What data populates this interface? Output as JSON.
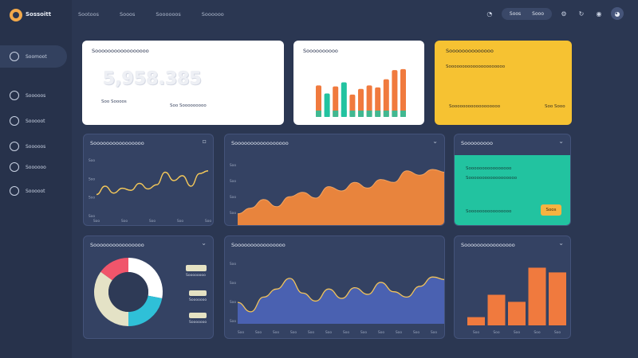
{
  "app": {
    "brand": "Sossoitt"
  },
  "sidebar": {
    "items": [
      {
        "label": "Soomoot",
        "icon": "dashboard-icon",
        "active": true
      },
      {
        "label": "Sooooos",
        "icon": "people-icon",
        "active": false
      },
      {
        "label": "Sooooot",
        "icon": "chart-icon",
        "active": false
      },
      {
        "label": "Sooooos",
        "icon": "refresh-icon",
        "active": false
      },
      {
        "label": "Soooooo",
        "icon": "settings-icon",
        "active": false
      },
      {
        "label": "Sooooot",
        "icon": "help-icon",
        "active": false
      }
    ]
  },
  "topnav": {
    "items": [
      "Sootoos",
      "Sooos",
      "Soooooos",
      "Soooooo"
    ]
  },
  "topright": {
    "pill": [
      "Soos",
      "Sooo"
    ]
  },
  "cards": {
    "total": {
      "title": "Sooooooooooooooooo",
      "value": "5,958.385",
      "left_label": "Soo Soooos",
      "right_label": "Soo Sooooooooo",
      "color": "#ffffff"
    },
    "bars_mini": {
      "title": "Soooooooooo",
      "color": "#ffffff"
    },
    "yellow": {
      "title": "Soooooooooooooo",
      "subtitle": "Sooooooooooooooooooooo",
      "footer_left": "Soooooooooooooooooo",
      "footer_right": "Soo Sooo",
      "color": "#f6c232"
    },
    "line_left": {
      "title": "Soooooooooooooooo"
    },
    "area": {
      "title": "Sooooooooooooooooo"
    },
    "teal": {
      "title": "Sooooooooo",
      "line1": "Soooooooooooooooo",
      "line2": "Soooooooooooooooooo",
      "line3": "Soooooooooooooooo",
      "button": "Soos",
      "color": "#22c3a0"
    },
    "donut": {
      "title": "Soooooooooooooooo",
      "legend": [
        "Soooooooo",
        "Sooooooo",
        "Sooooooo"
      ]
    },
    "line_blue": {
      "title": "Soooooooooooooooo"
    },
    "bar_right": {
      "title": "Soooooooooooooooo"
    }
  },
  "chart_data": [
    {
      "type": "bar",
      "name": "mini-bars",
      "values": [
        62,
        46,
        60,
        68,
        44,
        55,
        62,
        58,
        74,
        92,
        94
      ],
      "colors": [
        "#f07a3e",
        "#22c3a0",
        "#f07a3e",
        "#22c3a0",
        "#f07a3e",
        "#f07a3e",
        "#f07a3e",
        "#f07a3e",
        "#f07a3e",
        "#f07a3e",
        "#f07a3e"
      ],
      "ylim": [
        0,
        100
      ]
    },
    {
      "type": "line",
      "name": "left-line",
      "xticks": [
        "Soo",
        "Soo",
        "Soo",
        "Soo",
        "Soo"
      ],
      "yticks": [
        "Soo",
        "Soo",
        "Soo",
        "Soo"
      ],
      "values": [
        28,
        40,
        30,
        37,
        34,
        44,
        36,
        42,
        60,
        48,
        55,
        40,
        58,
        62
      ],
      "color": "#f4c85a",
      "ylim": [
        0,
        80
      ]
    },
    {
      "type": "area",
      "name": "orange-area",
      "yticks": [
        "Soo",
        "Soo",
        "Soo",
        "Soo"
      ],
      "values": [
        18,
        26,
        38,
        28,
        42,
        48,
        40,
        56,
        50,
        62,
        54,
        66,
        62,
        78,
        72,
        80,
        76
      ],
      "color": "#e8843d",
      "ylim": [
        0,
        100
      ]
    },
    {
      "type": "pie",
      "name": "donut",
      "values": [
        28,
        22,
        35,
        15
      ],
      "colors": [
        "#ffffff",
        "#2fc0d8",
        "#e4e2c6",
        "#f0556b"
      ]
    },
    {
      "type": "area",
      "name": "blue-area",
      "xticks": [
        "Soo",
        "Soo",
        "Soo",
        "Soo",
        "Soo",
        "Soo",
        "Soo",
        "Soo",
        "Soo",
        "Soo",
        "Soo",
        "Soo"
      ],
      "yticks": [
        "Soo",
        "Soo",
        "Soo",
        "Soo"
      ],
      "values": [
        32,
        18,
        40,
        52,
        68,
        46,
        34,
        52,
        38,
        54,
        44,
        62,
        48,
        40,
        56,
        70,
        66
      ],
      "color": "#4a61b1",
      "line": "#f2c35a",
      "ylim": [
        0,
        100
      ]
    },
    {
      "type": "bar",
      "name": "right-bars",
      "xticks": [
        "Soo",
        "Soo",
        "Soo",
        "Soo",
        "Soo"
      ],
      "values": [
        14,
        52,
        40,
        98,
        90
      ],
      "colors": [
        "#f07a3e",
        "#f07a3e",
        "#f07a3e",
        "#f07a3e",
        "#f07a3e"
      ],
      "ylim": [
        0,
        100
      ]
    }
  ]
}
